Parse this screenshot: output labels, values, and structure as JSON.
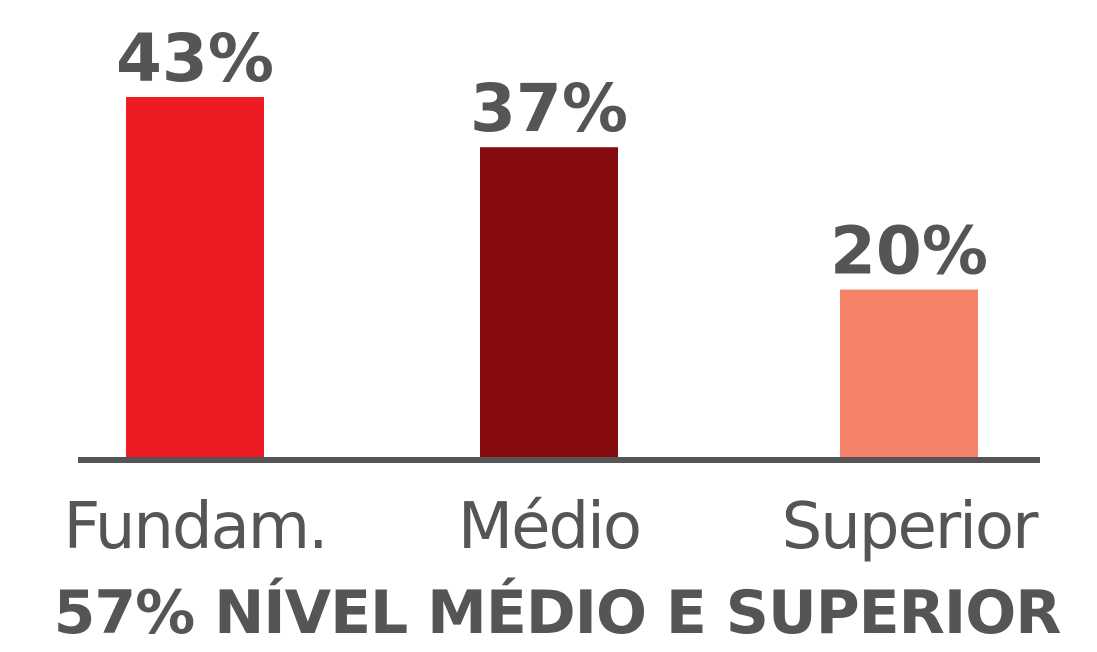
{
  "chart_data": {
    "type": "bar",
    "categories": [
      "Fundam.",
      "Médio",
      "Superior"
    ],
    "values": [
      43,
      37,
      20
    ],
    "value_labels": [
      "43%",
      "37%",
      "20%"
    ],
    "colors": [
      "#ed1c24",
      "#850b0e",
      "#f4836a"
    ],
    "subtitle": "57% NÍVEL MÉDIO E SUPERIOR",
    "ylim": [
      0,
      43
    ],
    "grid": false,
    "legend": "none",
    "axis_color": "#555555"
  }
}
